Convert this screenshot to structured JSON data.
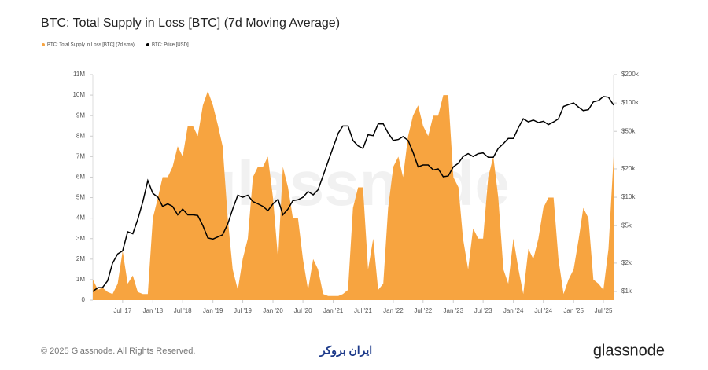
{
  "chart_data": {
    "type": "area-line",
    "title": "BTC: Total Supply in Loss [BTC] (7d Moving Average)",
    "watermark": "glassnode",
    "x": [
      "2017-01",
      "2017-02",
      "2017-03",
      "2017-04",
      "2017-05",
      "2017-06",
      "2017-07",
      "2017-08",
      "2017-09",
      "2017-10",
      "2017-11",
      "2017-12",
      "2018-01",
      "2018-02",
      "2018-03",
      "2018-04",
      "2018-05",
      "2018-06",
      "2018-07",
      "2018-08",
      "2018-09",
      "2018-10",
      "2018-11",
      "2018-12",
      "2019-01",
      "2019-02",
      "2019-03",
      "2019-04",
      "2019-05",
      "2019-06",
      "2019-07",
      "2019-08",
      "2019-09",
      "2019-10",
      "2019-11",
      "2019-12",
      "2020-01",
      "2020-02",
      "2020-03",
      "2020-04",
      "2020-05",
      "2020-06",
      "2020-07",
      "2020-08",
      "2020-09",
      "2020-10",
      "2020-11",
      "2020-12",
      "2021-01",
      "2021-02",
      "2021-03",
      "2021-04",
      "2021-05",
      "2021-06",
      "2021-07",
      "2021-08",
      "2021-09",
      "2021-10",
      "2021-11",
      "2021-12",
      "2022-01",
      "2022-02",
      "2022-03",
      "2022-04",
      "2022-05",
      "2022-06",
      "2022-07",
      "2022-08",
      "2022-09",
      "2022-10",
      "2022-11",
      "2022-12",
      "2023-01",
      "2023-02",
      "2023-03",
      "2023-04",
      "2023-05",
      "2023-06",
      "2023-07",
      "2023-08",
      "2023-09",
      "2023-10",
      "2023-11",
      "2023-12",
      "2024-01",
      "2024-02",
      "2024-03",
      "2024-04",
      "2024-05",
      "2024-06",
      "2024-07",
      "2024-08",
      "2024-09",
      "2024-10",
      "2024-11",
      "2024-12",
      "2025-01",
      "2025-02",
      "2025-03",
      "2025-04",
      "2025-05",
      "2025-06",
      "2025-07",
      "2025-08",
      "2025-09"
    ],
    "series": [
      {
        "name": "BTC: Total Supply in Loss [BTC] (7d sma)",
        "color": "#f7a440",
        "values": [
          1000000,
          500000,
          600000,
          400000,
          300000,
          800000,
          2400000,
          800000,
          1200000,
          400000,
          300000,
          300000,
          4000000,
          5000000,
          6000000,
          6000000,
          6500000,
          7500000,
          7000000,
          8500000,
          8500000,
          8000000,
          9500000,
          10200000,
          9500000,
          8500000,
          7500000,
          4000000,
          1500000,
          500000,
          2000000,
          3000000,
          6000000,
          6500000,
          6500000,
          7000000,
          5000000,
          2000000,
          6500000,
          5500000,
          4000000,
          4000000,
          2000000,
          500000,
          2000000,
          1500000,
          300000,
          200000,
          200000,
          200000,
          300000,
          500000,
          4500000,
          5500000,
          5500000,
          1500000,
          3000000,
          500000,
          800000,
          4500000,
          6500000,
          7000000,
          6000000,
          8000000,
          9000000,
          9500000,
          8500000,
          8000000,
          9000000,
          9000000,
          10000000,
          10000000,
          6000000,
          5500000,
          3000000,
          1500000,
          3500000,
          3000000,
          3000000,
          6000000,
          7000000,
          5000000,
          1500000,
          800000,
          3000000,
          1500000,
          300000,
          2500000,
          2000000,
          3000000,
          4500000,
          5000000,
          5000000,
          2000000,
          300000,
          1000000,
          1500000,
          3000000,
          4500000,
          4000000,
          1000000,
          800000,
          500000,
          2500000,
          7000000
        ]
      },
      {
        "name": "BTC: Price [USD]",
        "color": "#000000",
        "axis": "y2",
        "values": [
          1000,
          1100,
          1100,
          1300,
          2000,
          2500,
          2700,
          4300,
          4100,
          5800,
          9000,
          15000,
          11000,
          10000,
          8000,
          8500,
          8000,
          6500,
          7500,
          6500,
          6500,
          6400,
          5000,
          3700,
          3600,
          3800,
          4000,
          5200,
          7500,
          10500,
          10000,
          10500,
          9000,
          8500,
          8000,
          7200,
          8500,
          9500,
          6500,
          7500,
          9200,
          9400,
          10000,
          11500,
          10600,
          12000,
          17000,
          24000,
          34000,
          48000,
          57000,
          57000,
          40000,
          35000,
          33000,
          46000,
          45000,
          60000,
          60000,
          48000,
          40000,
          41000,
          44000,
          40000,
          30000,
          21000,
          22000,
          22000,
          19500,
          20000,
          16500,
          16800,
          21000,
          23000,
          27000,
          29000,
          27000,
          29000,
          29500,
          26500,
          26500,
          33000,
          37000,
          42000,
          42000,
          55000,
          68000,
          63000,
          66000,
          62000,
          64000,
          59000,
          63000,
          68000,
          92000,
          96000,
          100000,
          90000,
          83000,
          85000,
          103000,
          106000,
          117000,
          115000,
          95000
        ]
      }
    ],
    "xlim": [
      "2017-01",
      "2025-09"
    ],
    "xticks": [
      {
        "value": "2017-07",
        "label": "Jul '17"
      },
      {
        "value": "2018-01",
        "label": "Jan '18"
      },
      {
        "value": "2018-07",
        "label": "Jul '18"
      },
      {
        "value": "2019-01",
        "label": "Jan '19"
      },
      {
        "value": "2019-07",
        "label": "Jul '19"
      },
      {
        "value": "2020-01",
        "label": "Jan '20"
      },
      {
        "value": "2020-07",
        "label": "Jul '20"
      },
      {
        "value": "2021-01",
        "label": "Jan '21"
      },
      {
        "value": "2021-07",
        "label": "Jul '21"
      },
      {
        "value": "2022-01",
        "label": "Jan '22"
      },
      {
        "value": "2022-07",
        "label": "Jul '22"
      },
      {
        "value": "2023-01",
        "label": "Jan '23"
      },
      {
        "value": "2023-07",
        "label": "Jul '23"
      },
      {
        "value": "2024-01",
        "label": "Jan '24"
      },
      {
        "value": "2024-07",
        "label": "Jul '24"
      },
      {
        "value": "2025-01",
        "label": "Jan '25"
      },
      {
        "value": "2025-07",
        "label": "Jul '25"
      }
    ],
    "ylim": [
      0,
      11000000
    ],
    "yticks": [
      0,
      {
        "value": 1000000,
        "label": "1M"
      },
      {
        "value": 2000000,
        "label": "2M"
      },
      {
        "value": 3000000,
        "label": "3M"
      },
      {
        "value": 4000000,
        "label": "4M"
      },
      {
        "value": 5000000,
        "label": "5M"
      },
      {
        "value": 6000000,
        "label": "6M"
      },
      {
        "value": 7000000,
        "label": "7M"
      },
      {
        "value": 8000000,
        "label": "8M"
      },
      {
        "value": 9000000,
        "label": "9M"
      },
      {
        "value": 10000000,
        "label": "10M"
      },
      {
        "value": 11000000,
        "label": "11M"
      }
    ],
    "y2lim": [
      810,
      200000
    ],
    "y2scale": "log",
    "y2ticks": [
      {
        "value": 1000,
        "label": "$1k"
      },
      {
        "value": 2000,
        "label": "$2k"
      },
      {
        "value": 5000,
        "label": "$5k"
      },
      {
        "value": 10000,
        "label": "$10k"
      },
      {
        "value": 20000,
        "label": "$20k"
      },
      {
        "value": 50000,
        "label": "$50k"
      },
      {
        "value": 100000,
        "label": "$100k"
      },
      {
        "value": 200000,
        "label": "$200k"
      }
    ]
  },
  "footer": {
    "copyright": "© 2025 Glassnode. All Rights Reserved.",
    "partner": "ایران بروکر",
    "brand": "glassnode"
  }
}
